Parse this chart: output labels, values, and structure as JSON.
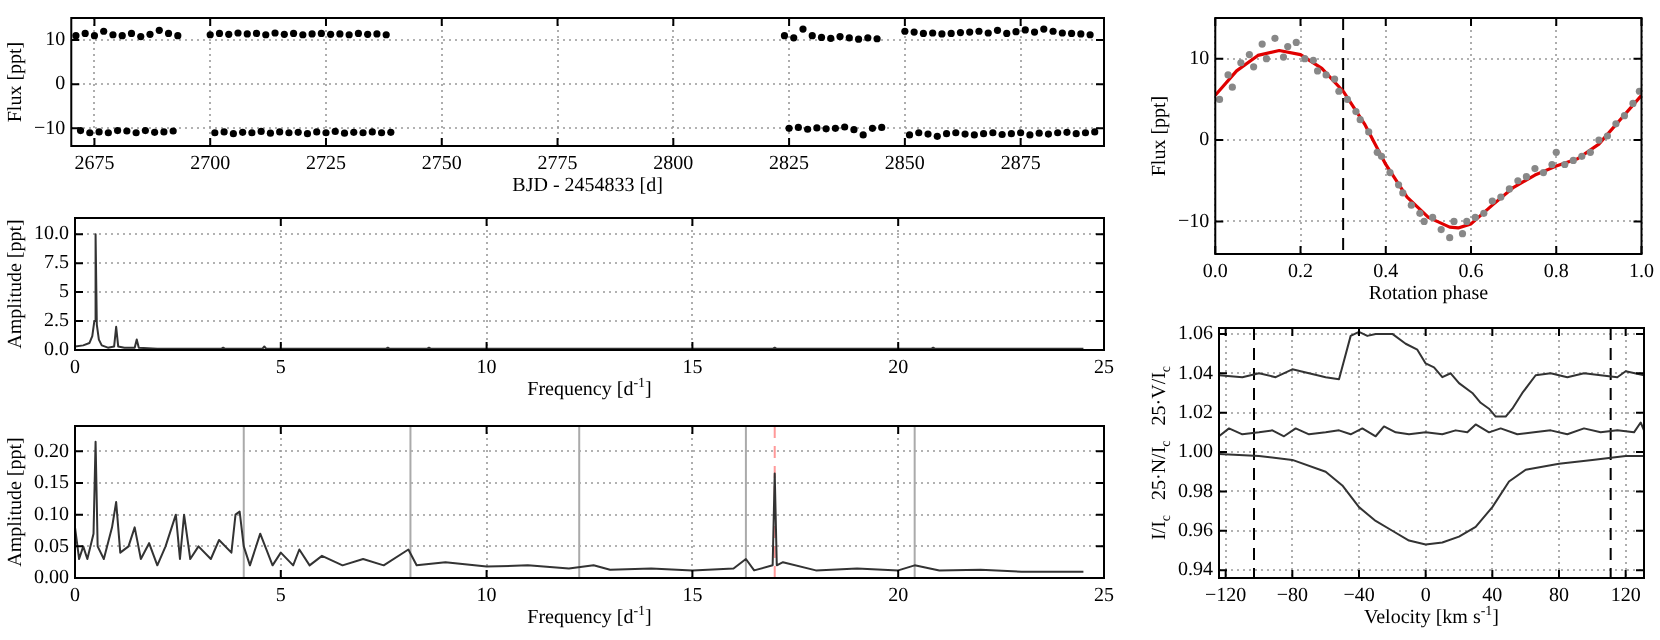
{
  "chart_data": [
    {
      "type": "scatter",
      "xlabel": "BJD - 2454833 [d]",
      "ylabel": "Flux [ppt]",
      "xlim": [
        2670,
        2893
      ],
      "ylim": [
        -14,
        15
      ],
      "xticks": [
        2675,
        2700,
        2725,
        2750,
        2775,
        2800,
        2825,
        2850,
        2875
      ],
      "yticks": [
        {
          "value": -10,
          "label": "−10"
        },
        0,
        10
      ],
      "grid": true,
      "series": [
        {
          "marker": "circle",
          "color": "#000000",
          "x": [
            2671,
            2672,
            2673,
            2674,
            2675,
            2676,
            2677,
            2678,
            2679,
            2680,
            2681,
            2682,
            2683,
            2684,
            2685,
            2686,
            2687,
            2688,
            2689,
            2690,
            2691,
            2692,
            2693,
            2700,
            2701,
            2702,
            2703,
            2704,
            2705,
            2706,
            2707,
            2708,
            2709,
            2710,
            2711,
            2712,
            2713,
            2714,
            2715,
            2716,
            2717,
            2718,
            2719,
            2720,
            2721,
            2722,
            2723,
            2724,
            2725,
            2726,
            2727,
            2728,
            2729,
            2730,
            2731,
            2732,
            2733,
            2734,
            2735,
            2736,
            2737,
            2738,
            2739,
            2824,
            2825,
            2826,
            2827,
            2828,
            2829,
            2830,
            2831,
            2832,
            2833,
            2834,
            2835,
            2836,
            2837,
            2838,
            2839,
            2840,
            2841,
            2842,
            2843,
            2844,
            2845,
            2850,
            2851,
            2852,
            2853,
            2854,
            2855,
            2856,
            2857,
            2858,
            2859,
            2860,
            2861,
            2862,
            2863,
            2864,
            2865,
            2866,
            2867,
            2868,
            2869,
            2870,
            2871,
            2872,
            2873,
            2874,
            2875,
            2876,
            2877,
            2878,
            2879,
            2880,
            2881,
            2882,
            2883,
            2884,
            2885,
            2886,
            2887,
            2888,
            2889,
            2890,
            2891
          ],
          "values": [
            11,
            -10.5,
            11.5,
            -11,
            11,
            -10.8,
            12,
            -11,
            11.2,
            -10.5,
            11,
            -10.6,
            11.5,
            -11,
            10.8,
            -10.5,
            11.3,
            -10.9,
            12.2,
            -10.8,
            11.5,
            -10.6,
            11,
            11.2,
            -11,
            11.5,
            -10.8,
            11.3,
            -11.2,
            11.6,
            -10.9,
            11.4,
            -11,
            11.5,
            -10.7,
            11.2,
            -11.1,
            11.6,
            -10.8,
            11.3,
            -11,
            11.5,
            -10.9,
            11.2,
            -11.2,
            11.4,
            -10.8,
            11.5,
            -11,
            11.3,
            -10.7,
            11.4,
            -11.1,
            11.2,
            -10.9,
            11.5,
            -11,
            11.3,
            -10.8,
            11.4,
            -11,
            11.2,
            -10.9,
            11,
            -10,
            10.5,
            -9.8,
            12.5,
            -10.2,
            11,
            -9.9,
            10.6,
            -10.1,
            10.4,
            -10,
            10.8,
            -9.7,
            10.5,
            -10.3,
            10.2,
            -11.5,
            10.5,
            -10,
            10.3,
            -9.8,
            12,
            -11.5,
            11.8,
            -11,
            11.5,
            -11.3,
            11.6,
            -11.8,
            11.4,
            -11.2,
            11.5,
            -11,
            11.7,
            -11.3,
            11.8,
            -11.5,
            12,
            -11.2,
            11.6,
            -11,
            12.2,
            -11.4,
            11.5,
            -11.2,
            11.9,
            -11,
            12.3,
            -11.5,
            11.8,
            -11.1,
            12.5,
            -11.3,
            12,
            -11,
            11.6,
            -10.9,
            11.5,
            -11.2,
            11.4,
            -11,
            11.2,
            -10.8
          ]
        }
      ]
    },
    {
      "type": "line",
      "xlabel": "Frequency [d$^{-1}$]",
      "ylabel": "Amplitude [ppt]",
      "xlim": [
        0,
        25
      ],
      "ylim": [
        0,
        11.4
      ],
      "xticks": [
        0,
        5,
        10,
        15,
        20,
        25
      ],
      "yticks": [
        {
          "value": 0,
          "label": "0.0"
        },
        2.5,
        5,
        7.5,
        {
          "value": 10,
          "label": "10.0"
        }
      ],
      "grid": true,
      "series": [
        {
          "color": "#333333",
          "x": [
            0,
            0.2,
            0.35,
            0.42,
            0.47,
            0.5,
            0.53,
            0.58,
            0.65,
            0.8,
            0.95,
            1.0,
            1.05,
            1.2,
            1.45,
            1.5,
            1.55,
            2.0,
            3.0,
            3.55,
            3.6,
            3.65,
            4.55,
            4.6,
            4.65,
            6,
            7.55,
            7.6,
            7.65,
            8.55,
            8.6,
            8.65,
            10,
            12,
            14,
            16.95,
            17.0,
            17.05,
            19,
            20.8,
            20.85,
            20.9,
            22,
            24,
            24.5
          ],
          "values": [
            0.3,
            0.4,
            0.6,
            1.2,
            2.5,
            10,
            2.2,
            0.9,
            0.4,
            0.2,
            0.3,
            2,
            0.3,
            0.2,
            0.2,
            0.9,
            0.2,
            0.1,
            0.1,
            0.1,
            0.2,
            0.1,
            0.1,
            0.3,
            0.1,
            0.1,
            0.1,
            0.2,
            0.1,
            0.1,
            0.2,
            0.1,
            0.1,
            0.1,
            0.1,
            0.1,
            0.2,
            0.1,
            0.1,
            0.1,
            0.2,
            0.1,
            0.1,
            0.1,
            0.1
          ]
        }
      ]
    },
    {
      "type": "line",
      "xlabel": "Frequency [d$^{-1}$]",
      "ylabel": "Amplitude [ppt]",
      "xlim": [
        0,
        25
      ],
      "ylim": [
        0,
        0.24
      ],
      "xticks": [
        0,
        5,
        10,
        15,
        20,
        25
      ],
      "yticks": [
        {
          "value": 0,
          "label": "0.00"
        },
        0.05,
        {
          "value": 0.1,
          "label": "0.10"
        },
        0.15,
        {
          "value": 0.2,
          "label": "0.20"
        }
      ],
      "grid": true,
      "ref_lines": [
        {
          "axis": "x",
          "value": 4.1,
          "color": "#aaaaaa",
          "line_style": "solid"
        },
        {
          "axis": "x",
          "value": 8.15,
          "color": "#aaaaaa",
          "line_style": "solid"
        },
        {
          "axis": "x",
          "value": 12.25,
          "color": "#aaaaaa",
          "line_style": "solid"
        },
        {
          "axis": "x",
          "value": 16.3,
          "color": "#aaaaaa",
          "line_style": "solid"
        },
        {
          "axis": "x",
          "value": 20.4,
          "color": "#aaaaaa",
          "line_style": "solid"
        },
        {
          "axis": "x",
          "value": 17.0,
          "color": "#ff9999",
          "line_style": "dashed"
        }
      ],
      "series": [
        {
          "color": "#333333",
          "x": [
            0,
            0.1,
            0.2,
            0.3,
            0.45,
            0.5,
            0.55,
            0.7,
            0.9,
            1.0,
            1.1,
            1.3,
            1.45,
            1.6,
            1.8,
            2.0,
            2.2,
            2.45,
            2.55,
            2.65,
            2.8,
            3.0,
            3.3,
            3.5,
            3.8,
            3.9,
            4.0,
            4.1,
            4.25,
            4.5,
            4.8,
            5.0,
            5.3,
            5.45,
            5.7,
            6.0,
            6.5,
            7.0,
            7.5,
            8.1,
            8.3,
            9.0,
            10,
            11,
            12,
            12.6,
            13,
            14,
            15,
            16,
            16.3,
            16.5,
            16.95,
            17.0,
            17.05,
            17.2,
            18,
            19,
            20,
            20.4,
            21,
            22,
            23,
            24,
            24.5
          ],
          "values": [
            0.08,
            0.03,
            0.05,
            0.03,
            0.07,
            0.215,
            0.05,
            0.03,
            0.08,
            0.12,
            0.04,
            0.05,
            0.08,
            0.03,
            0.055,
            0.02,
            0.05,
            0.1,
            0.03,
            0.1,
            0.03,
            0.05,
            0.03,
            0.06,
            0.04,
            0.1,
            0.105,
            0.05,
            0.02,
            0.07,
            0.02,
            0.04,
            0.02,
            0.045,
            0.02,
            0.035,
            0.02,
            0.03,
            0.02,
            0.045,
            0.02,
            0.025,
            0.018,
            0.02,
            0.015,
            0.02,
            0.013,
            0.015,
            0.012,
            0.015,
            0.03,
            0.012,
            0.02,
            0.165,
            0.02,
            0.025,
            0.012,
            0.015,
            0.012,
            0.02,
            0.012,
            0.013,
            0.01,
            0.01,
            0.01
          ]
        }
      ]
    },
    {
      "type": "scatter",
      "xlabel": "Rotation phase",
      "ylabel": "Flux [ppt]",
      "xlim": [
        0,
        1
      ],
      "ylim": [
        -14,
        15
      ],
      "xticks": [
        {
          "value": 0,
          "label": "0.0"
        },
        0.2,
        0.4,
        0.6,
        0.8,
        {
          "value": 1,
          "label": "1.0"
        }
      ],
      "yticks": [
        {
          "value": -10,
          "label": "−10"
        },
        0,
        10
      ],
      "grid": true,
      "ref_lines": [
        {
          "axis": "x",
          "value": 0.3,
          "color": "#000000",
          "line_style": "dashed"
        }
      ],
      "series": [
        {
          "marker": "circle",
          "color": "#888888",
          "x": [
            0.01,
            0.03,
            0.04,
            0.06,
            0.08,
            0.09,
            0.11,
            0.12,
            0.14,
            0.16,
            0.17,
            0.19,
            0.21,
            0.23,
            0.24,
            0.26,
            0.28,
            0.29,
            0.31,
            0.33,
            0.34,
            0.36,
            0.38,
            0.39,
            0.41,
            0.43,
            0.44,
            0.46,
            0.48,
            0.49,
            0.51,
            0.53,
            0.55,
            0.56,
            0.58,
            0.59,
            0.61,
            0.63,
            0.65,
            0.67,
            0.69,
            0.71,
            0.73,
            0.75,
            0.77,
            0.79,
            0.8,
            0.82,
            0.84,
            0.86,
            0.88,
            0.9,
            0.92,
            0.94,
            0.96,
            0.98,
            0.995
          ],
          "values": [
            5,
            8,
            6.5,
            9.5,
            10.5,
            9,
            11.8,
            10,
            12.5,
            10.2,
            11.5,
            12,
            10,
            9.8,
            8.5,
            8,
            7.5,
            6,
            5,
            3.5,
            2.5,
            1,
            -1.5,
            -2,
            -4,
            -5.5,
            -6.5,
            -8,
            -9,
            -10,
            -9.5,
            -11,
            -12,
            -10,
            -11.5,
            -10,
            -9.5,
            -9,
            -7.5,
            -7,
            -6,
            -5,
            -4.5,
            -3.5,
            -4,
            -3,
            -1.5,
            -3,
            -2.5,
            -2,
            -1.5,
            0,
            0.5,
            2,
            3,
            4.5,
            6
          ]
        },
        {
          "type": "line",
          "color": "#e00000",
          "x": [
            0,
            0.05,
            0.1,
            0.15,
            0.2,
            0.25,
            0.3,
            0.35,
            0.4,
            0.45,
            0.5,
            0.55,
            0.57,
            0.6,
            0.65,
            0.7,
            0.75,
            0.8,
            0.85,
            0.9,
            0.95,
            1.0
          ],
          "values": [
            5.5,
            8.5,
            10.4,
            11,
            10.5,
            8.8,
            6,
            2,
            -3,
            -7,
            -9.5,
            -10.7,
            -10.8,
            -10.3,
            -8,
            -5.8,
            -4.3,
            -3.2,
            -2.3,
            -0.5,
            2.5,
            5.5
          ]
        }
      ]
    },
    {
      "type": "line",
      "xlabel": "Velocity [km s$^{-1}$]",
      "ylabel": "I/I$_{c}$   25·N/I$_{c}$   25·V/I$_{c}$",
      "xlim": [
        -124,
        131
      ],
      "ylim": [
        0.936,
        1.063
      ],
      "xticks": [
        {
          "value": -120,
          "label": "−120"
        },
        {
          "value": -80,
          "label": "−80"
        },
        {
          "value": -40,
          "label": "−40"
        },
        0,
        40,
        80,
        120
      ],
      "yticks": [
        0.94,
        0.96,
        0.98,
        {
          "value": 1,
          "label": "1.00"
        },
        1.02,
        1.04,
        1.06
      ],
      "grid": true,
      "ref_lines": [
        {
          "axis": "x",
          "value": -103,
          "color": "#000000",
          "line_style": "dashed"
        },
        {
          "axis": "x",
          "value": 111,
          "color": "#000000",
          "line_style": "dashed"
        }
      ],
      "series": [
        {
          "color": "#333333",
          "x": [
            -124,
            -110,
            -100,
            -90,
            -80,
            -70,
            -60,
            -52,
            -45,
            -40,
            -35,
            -30,
            -20,
            -12,
            -5,
            0,
            5,
            10,
            15,
            20,
            28,
            33,
            38,
            42,
            48,
            52,
            58,
            66,
            75,
            85,
            95,
            105,
            115,
            120,
            131
          ],
          "values": [
            1.039,
            1.038,
            1.04,
            1.038,
            1.042,
            1.04,
            1.038,
            1.037,
            1.059,
            1.061,
            1.059,
            1.06,
            1.06,
            1.055,
            1.052,
            1.045,
            1.043,
            1.038,
            1.04,
            1.035,
            1.03,
            1.025,
            1.022,
            1.018,
            1.018,
            1.022,
            1.03,
            1.039,
            1.04,
            1.038,
            1.04,
            1.039,
            1.038,
            1.041,
            1.039
          ]
        },
        {
          "color": "#333333",
          "x": [
            -124,
            -118,
            -110,
            -100,
            -92,
            -85,
            -78,
            -70,
            -60,
            -52,
            -45,
            -38,
            -30,
            -25,
            -18,
            -10,
            0,
            10,
            18,
            25,
            30,
            38,
            45,
            55,
            65,
            75,
            85,
            95,
            105,
            115,
            125,
            129,
            131
          ],
          "values": [
            1.008,
            1.012,
            1.009,
            1.01,
            1.011,
            1.008,
            1.012,
            1.009,
            1.01,
            1.011,
            1.009,
            1.012,
            1.008,
            1.013,
            1.01,
            1.009,
            1.01,
            1.009,
            1.011,
            1.01,
            1.014,
            1.01,
            1.012,
            1.009,
            1.01,
            1.011,
            1.009,
            1.012,
            1.01,
            1.011,
            1.01,
            1.015,
            1.011
          ]
        },
        {
          "color": "#333333",
          "x": [
            -124,
            -100,
            -80,
            -60,
            -50,
            -40,
            -30,
            -20,
            -10,
            0,
            10,
            20,
            30,
            40,
            50,
            60,
            80,
            100,
            120,
            131
          ],
          "values": [
            0.999,
            0.998,
            0.996,
            0.99,
            0.983,
            0.972,
            0.965,
            0.96,
            0.955,
            0.953,
            0.954,
            0.957,
            0.962,
            0.972,
            0.985,
            0.991,
            0.994,
            0.996,
            0.998,
            0.998
          ]
        }
      ]
    }
  ]
}
